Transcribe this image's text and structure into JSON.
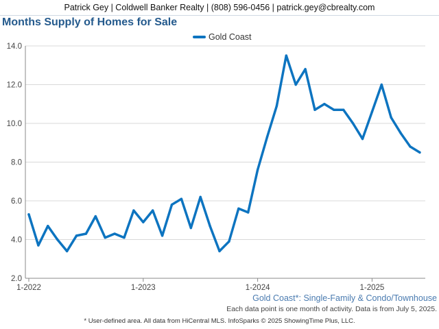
{
  "header": {
    "contact": "Patrick Gey | Coldwell Banker Realty | (808) 596-0456 | patrick.gey@cbrealty.com"
  },
  "chart_data": {
    "type": "line",
    "title": "Months Supply of Homes for Sale",
    "xlabel": "",
    "ylabel": "",
    "ylim": [
      2.0,
      14.0
    ],
    "y_ticks": [
      "2.0",
      "4.0",
      "6.0",
      "8.0",
      "10.0",
      "12.0",
      "14.0"
    ],
    "x_ticks": [
      "1-2022",
      "1-2023",
      "1-2024",
      "1-2025"
    ],
    "grid": true,
    "legend_position": "top-center",
    "x": [
      "1-2022",
      "2-2022",
      "3-2022",
      "4-2022",
      "5-2022",
      "6-2022",
      "7-2022",
      "8-2022",
      "9-2022",
      "10-2022",
      "11-2022",
      "12-2022",
      "1-2023",
      "2-2023",
      "3-2023",
      "4-2023",
      "5-2023",
      "6-2023",
      "7-2023",
      "8-2023",
      "9-2023",
      "10-2023",
      "11-2023",
      "12-2023",
      "1-2024",
      "2-2024",
      "3-2024",
      "4-2024",
      "5-2024",
      "6-2024",
      "7-2024",
      "8-2024",
      "9-2024",
      "10-2024",
      "11-2024",
      "12-2024",
      "1-2025",
      "2-2025",
      "3-2025",
      "4-2025",
      "5-2025",
      "6-2025"
    ],
    "series": [
      {
        "name": "Gold Coast",
        "color": "#0d74c0",
        "values": [
          5.3,
          3.7,
          4.7,
          4.0,
          3.4,
          4.2,
          4.3,
          5.2,
          4.1,
          4.3,
          4.1,
          5.5,
          4.9,
          5.5,
          4.2,
          5.8,
          6.1,
          4.6,
          6.2,
          4.7,
          3.4,
          3.9,
          5.6,
          5.4,
          7.6,
          9.3,
          10.9,
          13.5,
          12.0,
          12.8,
          10.7,
          11.0,
          10.7,
          10.7,
          10.0,
          9.2,
          10.6,
          12.0,
          10.3,
          9.5,
          8.8,
          8.5
        ]
      }
    ]
  },
  "notes": {
    "area": "Gold Coast*: Single-Family & Condo/Townhouse",
    "data_note": "Each data point is one month of activity. Data is from July 5, 2025.",
    "footer": "* User-defined area. All data from HiCentral MLS. InfoSparks © 2025 ShowingTime Plus, LLC."
  }
}
